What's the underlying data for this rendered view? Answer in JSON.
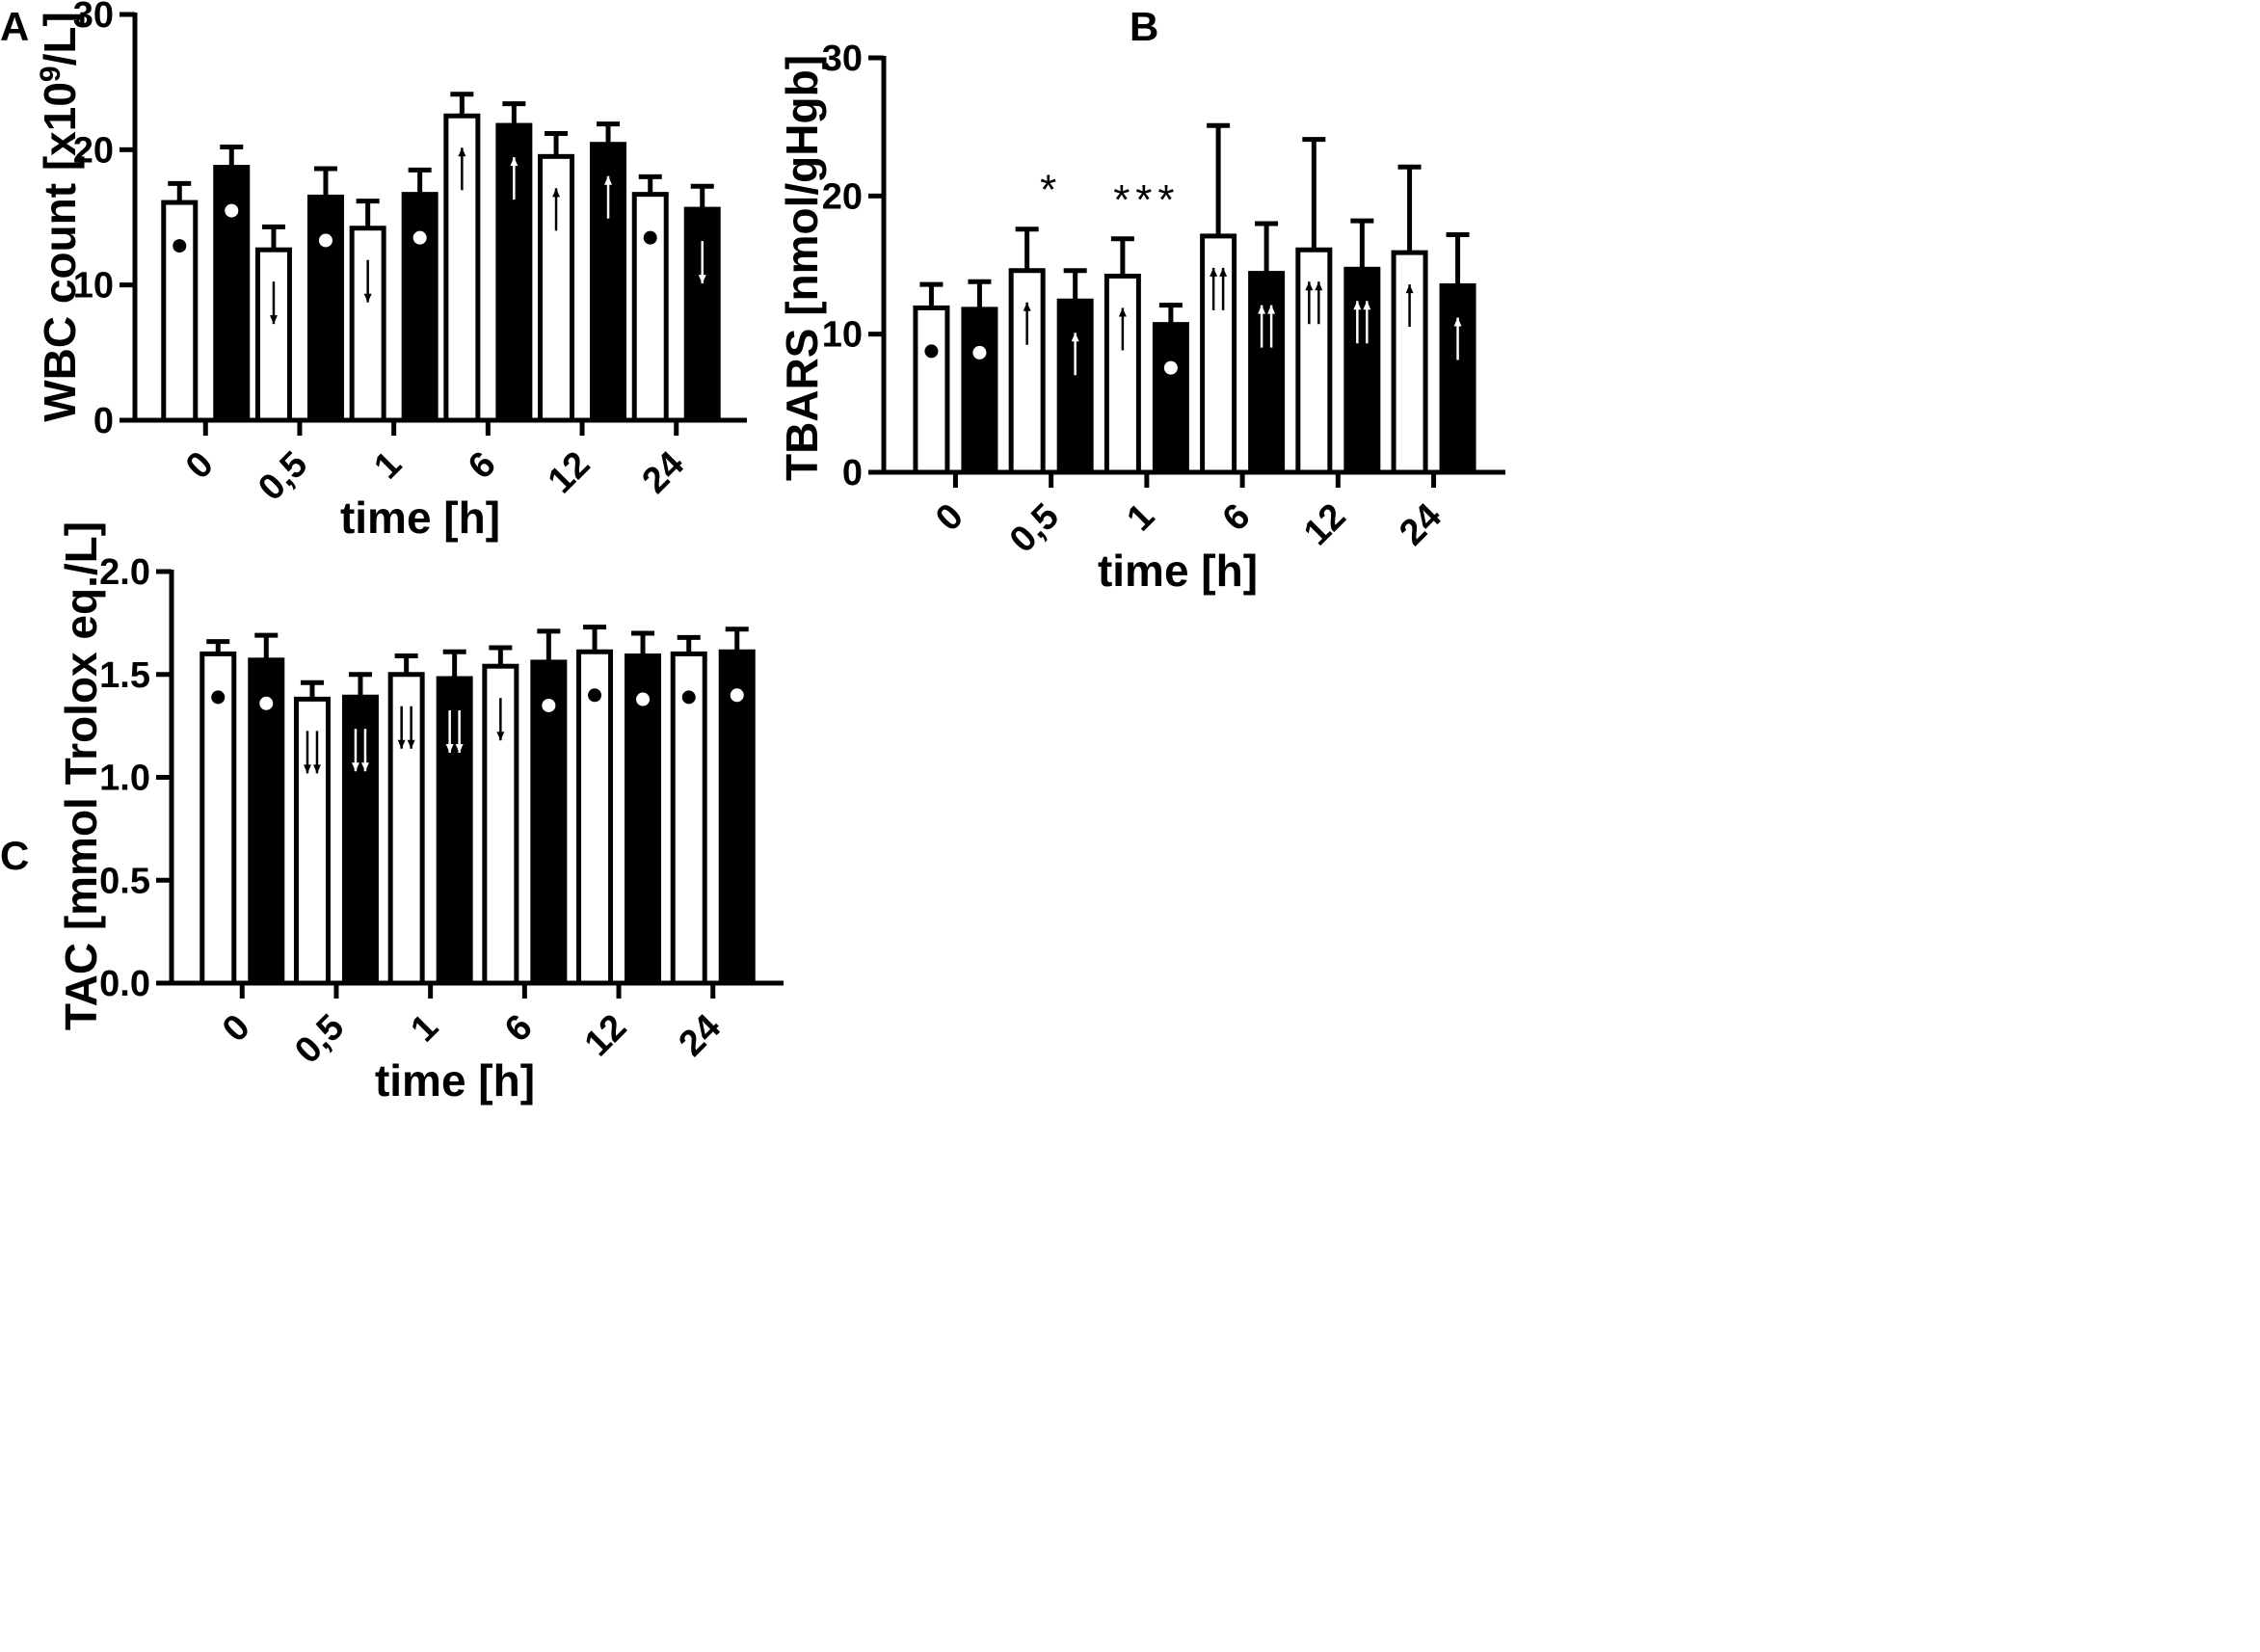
{
  "figure": {
    "panel_labels": [
      "A",
      "B",
      "C"
    ]
  },
  "chart_data": [
    {
      "panel": "A",
      "type": "bar",
      "title": "",
      "categories": [
        "0",
        "0,5",
        "1",
        "6",
        "12",
        "24"
      ],
      "xlabel": "time [h]",
      "ylabel_main": "WBC count [x10",
      "ylabel_sup": "9",
      "ylabel_tail": "/L]",
      "ylim": [
        0,
        30
      ],
      "yticks": [
        0,
        10,
        20,
        30
      ],
      "ytick_labels": [
        "0",
        "10",
        "20",
        "30"
      ],
      "colors": {
        "series1": "#ffffff",
        "series2": "#000000",
        "outline": "#000000"
      },
      "series": [
        {
          "name": "series1",
          "values": [
            16.1,
            12.6,
            14.2,
            22.5,
            19.5,
            16.7
          ],
          "errors": [
            1.4,
            1.7,
            2.0,
            1.6,
            1.7,
            1.3
          ],
          "markers": [
            "dot",
            "down",
            "down",
            "up",
            "up",
            "dot"
          ]
        },
        {
          "name": "series2",
          "values": [
            18.7,
            16.5,
            16.7,
            21.8,
            20.4,
            15.6
          ],
          "errors": [
            1.5,
            2.1,
            1.8,
            1.6,
            1.5,
            1.7
          ],
          "markers": [
            "dot",
            "dot",
            "dot",
            "up",
            "up",
            "down"
          ]
        }
      ],
      "annotations": []
    },
    {
      "panel": "B",
      "type": "bar",
      "title": "",
      "categories": [
        "0",
        "0,5",
        "1",
        "6",
        "12",
        "24"
      ],
      "xlabel": "time [h]",
      "ylabel_main": "TBARS [nmol/gHgb]",
      "ylabel_sup": "",
      "ylabel_tail": "",
      "ylim": [
        0,
        30
      ],
      "yticks": [
        0,
        10,
        20,
        30
      ],
      "ytick_labels": [
        "0",
        "10",
        "20",
        "30"
      ],
      "colors": {
        "series1": "#ffffff",
        "series2": "#000000",
        "outline": "#000000"
      },
      "series": [
        {
          "name": "series1",
          "values": [
            11.9,
            14.6,
            14.2,
            17.1,
            16.1,
            15.9
          ],
          "errors": [
            1.7,
            3.0,
            2.7,
            8.0,
            8.0,
            6.2
          ],
          "markers": [
            "dot",
            "up",
            "up",
            "up2",
            "up2",
            "up"
          ]
        },
        {
          "name": "series2",
          "values": [
            11.8,
            12.4,
            10.7,
            14.4,
            14.7,
            13.5
          ],
          "errors": [
            2.0,
            2.2,
            1.4,
            3.6,
            3.5,
            3.7
          ],
          "markers": [
            "dot",
            "up",
            "dot",
            "up2",
            "up2",
            "up"
          ]
        }
      ],
      "annotations": [
        {
          "category": "0,5",
          "text": "*"
        },
        {
          "category": "1",
          "text": "***"
        }
      ]
    },
    {
      "panel": "C",
      "type": "bar",
      "title": "",
      "categories": [
        "0",
        "0,5",
        "1",
        "6",
        "12",
        "24"
      ],
      "xlabel": "time [h]",
      "ylabel_main": "TAC [mmol Trolox eq./L]",
      "ylabel_sup": "",
      "ylabel_tail": "",
      "ylim": [
        0,
        2.0
      ],
      "yticks": [
        0,
        0.5,
        1.0,
        1.5,
        2.0
      ],
      "ytick_labels": [
        "0.0",
        "0.5",
        "1.0",
        "1.5",
        "2.0"
      ],
      "colors": {
        "series1": "#ffffff",
        "series2": "#000000",
        "outline": "#000000"
      },
      "series": [
        {
          "name": "series1",
          "values": [
            1.6,
            1.38,
            1.5,
            1.54,
            1.61,
            1.6
          ],
          "errors": [
            0.06,
            0.08,
            0.09,
            0.09,
            0.12,
            0.08
          ],
          "markers": [
            "dot",
            "down2",
            "down2",
            "down",
            "dot",
            "dot"
          ]
        },
        {
          "name": "series2",
          "values": [
            1.57,
            1.39,
            1.48,
            1.56,
            1.59,
            1.61
          ],
          "errors": [
            0.12,
            0.11,
            0.13,
            0.15,
            0.11,
            0.11
          ],
          "markers": [
            "dot",
            "down2",
            "down2",
            "dot",
            "dot",
            "dot"
          ]
        }
      ],
      "annotations": []
    }
  ]
}
